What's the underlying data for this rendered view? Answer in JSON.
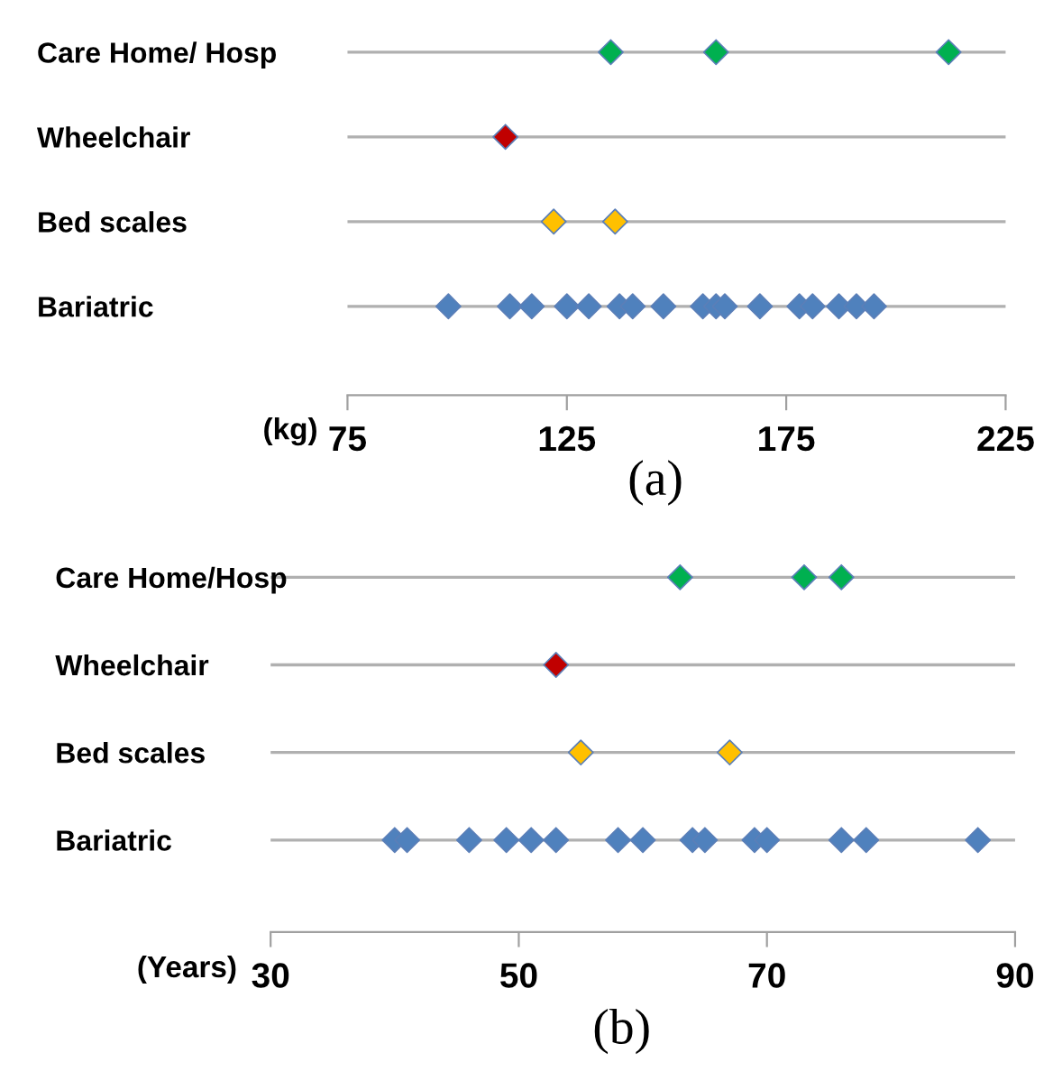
{
  "chart_data": [
    {
      "type": "scatter",
      "orientation": "horizontal",
      "categories": [
        "Care Home/ Hosp",
        "Wheelchair",
        "Bed scales",
        "Bariatric"
      ],
      "xlabel": "(kg)",
      "xlim": [
        75,
        225
      ],
      "xticks": [
        75,
        125,
        175,
        225
      ],
      "grid": "y",
      "marker": "diamond",
      "annotations": [
        "(a)"
      ],
      "series": [
        {
          "color": "#00b050",
          "x": [
            "Care Home/ Hosp",
            "Care Home/ Hosp",
            "Care Home/ Hosp"
          ],
          "values": [
            135,
            159,
            212
          ]
        },
        {
          "color": "#c00000",
          "x": [
            "Wheelchair"
          ],
          "values": [
            111
          ]
        },
        {
          "color": "#ffc000",
          "x": [
            "Bed scales",
            "Bed scales"
          ],
          "values": [
            122,
            136
          ]
        },
        {
          "color": "#4f81bd",
          "x": [
            "Bariatric",
            "Bariatric",
            "Bariatric",
            "Bariatric",
            "Bariatric",
            "Bariatric",
            "Bariatric",
            "Bariatric",
            "Bariatric",
            "Bariatric",
            "Bariatric",
            "Bariatric",
            "Bariatric",
            "Bariatric",
            "Bariatric",
            "Bariatric",
            "Bariatric"
          ],
          "values": [
            98,
            112,
            117,
            125,
            130,
            137,
            140,
            147,
            156,
            159,
            161,
            169,
            178,
            181,
            187,
            191,
            195
          ]
        }
      ]
    },
    {
      "type": "scatter",
      "orientation": "horizontal",
      "categories": [
        "Care Home/Hosp",
        "Wheelchair",
        "Bed scales",
        "Bariatric"
      ],
      "xlabel": "(Years)",
      "xlim": [
        30,
        90
      ],
      "xticks": [
        30,
        50,
        70,
        90
      ],
      "grid": "y",
      "marker": "diamond",
      "annotations": [
        "(b)"
      ],
      "series": [
        {
          "color": "#00b050",
          "x": [
            "Care Home/Hosp",
            "Care Home/Hosp",
            "Care Home/Hosp"
          ],
          "values": [
            63,
            73,
            76
          ]
        },
        {
          "color": "#c00000",
          "x": [
            "Wheelchair"
          ],
          "values": [
            53
          ]
        },
        {
          "color": "#ffc000",
          "x": [
            "Bed scales",
            "Bed scales"
          ],
          "values": [
            55,
            67
          ]
        },
        {
          "color": "#4f81bd",
          "x": [
            "Bariatric",
            "Bariatric",
            "Bariatric",
            "Bariatric",
            "Bariatric",
            "Bariatric",
            "Bariatric",
            "Bariatric",
            "Bariatric",
            "Bariatric",
            "Bariatric",
            "Bariatric",
            "Bariatric",
            "Bariatric",
            "Bariatric"
          ],
          "values": [
            40,
            41,
            46,
            49,
            51,
            53,
            58,
            60,
            64,
            65,
            69,
            70,
            76,
            78,
            87
          ]
        }
      ]
    }
  ]
}
